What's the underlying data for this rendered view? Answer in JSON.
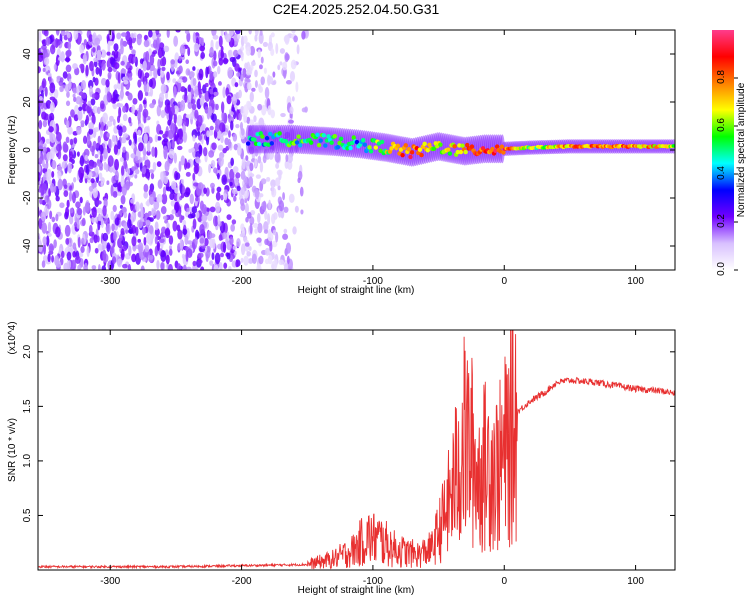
{
  "title": "C2E4.2025.252.04.50.G31",
  "chart_data": [
    {
      "type": "heatmap",
      "title": "C2E4.2025.252.04.50.G31",
      "xlabel": "Height of straight line (km)",
      "ylabel": "Frequency (Hz)",
      "xlim": [
        -355,
        130
      ],
      "ylim": [
        -50,
        50
      ],
      "xticks": [
        -300,
        -200,
        -100,
        0,
        100
      ],
      "xtick_labels": [
        "-300",
        "-200",
        "-100",
        "0",
        "100"
      ],
      "yticks": [
        -40,
        -20,
        0,
        20,
        40
      ],
      "ytick_labels": [
        "-40",
        "-20",
        "0",
        "20",
        "40"
      ],
      "colorbar": {
        "label": "Normalized spectral amplitude",
        "range": [
          0,
          1
        ],
        "ticks": [
          0.0,
          0.2,
          0.4,
          0.6,
          0.8
        ],
        "tick_labels": [
          "0.0",
          "0.2",
          "0.4",
          "0.6",
          "0.8"
        ],
        "colors": [
          "#ffffff",
          "#d8c0ff",
          "#7000ff",
          "#0000ff",
          "#00ffff",
          "#00ff00",
          "#ffff00",
          "#ff8000",
          "#ff0000",
          "#ff3c8c"
        ]
      },
      "signal_track": {
        "x": [
          -195,
          -160,
          -130,
          -110,
          -90,
          -70,
          -50,
          -30,
          -15,
          0,
          20,
          50,
          80,
          110,
          130
        ],
        "freq": [
          4.5,
          4.5,
          3.5,
          2.5,
          1.0,
          -1.0,
          1.5,
          -0.5,
          0.5,
          0.5,
          1.0,
          1.5,
          1.5,
          1.5,
          1.5
        ],
        "amplitude": [
          0.45,
          0.5,
          0.5,
          0.45,
          0.6,
          0.85,
          0.6,
          0.75,
          0.85,
          0.85,
          0.55,
          0.75,
          0.8,
          0.75,
          0.6
        ]
      },
      "noise_region_x": [
        -355,
        -150
      ]
    },
    {
      "type": "line",
      "xlabel": "Height of straight line (km)",
      "ylabel": "SNR (10 * v/v)",
      "y_scale_label": "(x10^4)",
      "xlim": [
        -355,
        130
      ],
      "ylim": [
        0,
        2.2
      ],
      "xticks": [
        -300,
        -200,
        -100,
        0,
        100
      ],
      "xtick_labels": [
        "-300",
        "-200",
        "-100",
        "0",
        "100"
      ],
      "yticks": [
        0.5,
        1.0,
        1.5,
        2.0
      ],
      "ytick_labels": [
        "0.5",
        "1.0",
        "1.5",
        "2.0"
      ],
      "series": [
        {
          "name": "SNR",
          "color": "#e83030",
          "x": [
            -355,
            -300,
            -250,
            -200,
            -150,
            -130,
            -115,
            -105,
            -95,
            -85,
            -75,
            -65,
            -55,
            -45,
            -40,
            -35,
            -30,
            -25,
            -20,
            -15,
            -10,
            -5,
            0,
            5,
            10,
            20,
            30,
            40,
            50,
            60,
            70,
            80,
            90,
            100,
            110,
            120,
            130
          ],
          "y": [
            0.03,
            0.03,
            0.03,
            0.04,
            0.05,
            0.1,
            0.18,
            0.3,
            0.28,
            0.2,
            0.16,
            0.14,
            0.2,
            0.5,
            0.7,
            0.95,
            1.2,
            1.1,
            0.85,
            0.95,
            1.0,
            0.9,
            1.05,
            1.25,
            1.45,
            1.55,
            1.62,
            1.72,
            1.74,
            1.73,
            1.72,
            1.7,
            1.68,
            1.66,
            1.65,
            1.64,
            1.62
          ]
        }
      ]
    }
  ]
}
